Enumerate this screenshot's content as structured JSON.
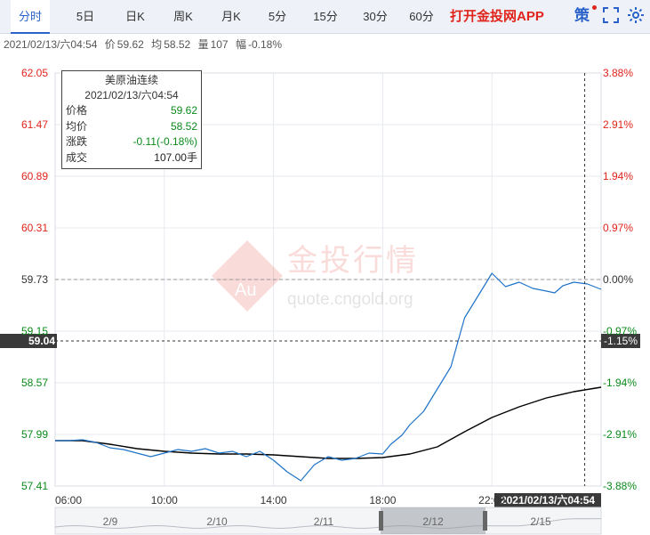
{
  "tabs": [
    {
      "label": "分时",
      "active": true
    },
    {
      "label": "5日"
    },
    {
      "label": "日K"
    },
    {
      "label": "周K"
    },
    {
      "label": "月K"
    },
    {
      "label": "5分"
    },
    {
      "label": "15分"
    },
    {
      "label": "30分"
    },
    {
      "label": "60分"
    }
  ],
  "app_link": "打开金投网APP",
  "tools": {
    "strategy_icon": "策",
    "fullscreen_icon": "fullscreen-icon",
    "settings_icon": "gear-icon"
  },
  "info": {
    "datetime": "2021/02/13/六04:54",
    "price_label": "价",
    "price": "59.62",
    "avg_label": "均",
    "avg": "58.52",
    "volume_label": "量",
    "volume": "107",
    "change_label": "幅",
    "change": "-0.18%"
  },
  "tooltip": {
    "title": "美原油连续",
    "datetime": "2021/02/13/六04:54",
    "price_label": "价格",
    "price": "59.62",
    "avg_label": "均价",
    "avg": "58.52",
    "change_label": "涨跌",
    "change": "-0.11(-0.18%)",
    "volume_label": "成交",
    "volume": "107.00手"
  },
  "watermark": {
    "brand": "金投行情",
    "url": "quote.cngold.org",
    "logo_text": "Au"
  },
  "colors": {
    "up": "#e0241b",
    "down": "#0a8a1a",
    "price_line": "#1e73c8",
    "avg_line": "#000000",
    "accent": "#2a62c9"
  },
  "chart_data": {
    "type": "line",
    "title": "美原油连续",
    "y_ticks_left": [
      "62.05",
      "61.47",
      "60.89",
      "60.31",
      "59.73",
      "59.15",
      "58.57",
      "57.99",
      "57.41"
    ],
    "y_ticks_right": [
      "3.88%",
      "2.91%",
      "1.94%",
      "0.97%",
      "0.00%",
      "-0.97%",
      "-1.94%",
      "-2.91%",
      "-3.88%"
    ],
    "ylim": [
      57.41,
      62.05
    ],
    "reference_price": 59.73,
    "crosshair": {
      "price_label": "59.04",
      "pct_label": "-1.15%",
      "time_label": "2021/02/13/六04:54",
      "price": 59.04
    },
    "x_ticks": [
      "06:00",
      "10:00",
      "14:00",
      "18:00",
      "22:00"
    ],
    "x_tick_hours": [
      0,
      4,
      8,
      12,
      16
    ],
    "x_total_hours": 20,
    "price_series": {
      "name": "价格",
      "x": [
        0,
        0.5,
        1,
        1.5,
        2,
        2.5,
        3,
        3.5,
        4,
        4.5,
        5,
        5.5,
        6,
        6.5,
        7,
        7.5,
        8,
        8.5,
        9,
        9.5,
        10,
        10.5,
        11,
        11.5,
        12,
        12.3,
        12.7,
        13,
        13.5,
        14,
        14.5,
        15,
        15.5,
        16,
        16.5,
        17,
        17.5,
        18,
        18.3,
        18.6,
        19,
        19.5,
        20
      ],
      "y": [
        57.92,
        57.92,
        57.93,
        57.9,
        57.84,
        57.82,
        57.78,
        57.74,
        57.78,
        57.82,
        57.8,
        57.83,
        57.78,
        57.8,
        57.74,
        57.8,
        57.7,
        57.57,
        57.47,
        57.65,
        57.74,
        57.7,
        57.72,
        57.78,
        57.77,
        57.88,
        57.98,
        58.1,
        58.25,
        58.5,
        58.75,
        59.3,
        59.55,
        59.8,
        59.65,
        59.7,
        59.63,
        59.6,
        59.58,
        59.66,
        59.7,
        59.68,
        59.62
      ]
    },
    "avg_series": {
      "name": "均价",
      "x": [
        0,
        1,
        2,
        3,
        4,
        5,
        6,
        7,
        8,
        9,
        10,
        11,
        12,
        13,
        14,
        15,
        16,
        17,
        18,
        19,
        20
      ],
      "y": [
        57.92,
        57.92,
        57.88,
        57.83,
        57.8,
        57.78,
        57.77,
        57.77,
        57.76,
        57.74,
        57.72,
        57.72,
        57.73,
        57.77,
        57.85,
        58.02,
        58.18,
        58.3,
        58.4,
        58.47,
        58.52
      ]
    },
    "overview_dates": [
      "2/9",
      "2/10",
      "2/11",
      "2/12",
      "2/15"
    ]
  }
}
